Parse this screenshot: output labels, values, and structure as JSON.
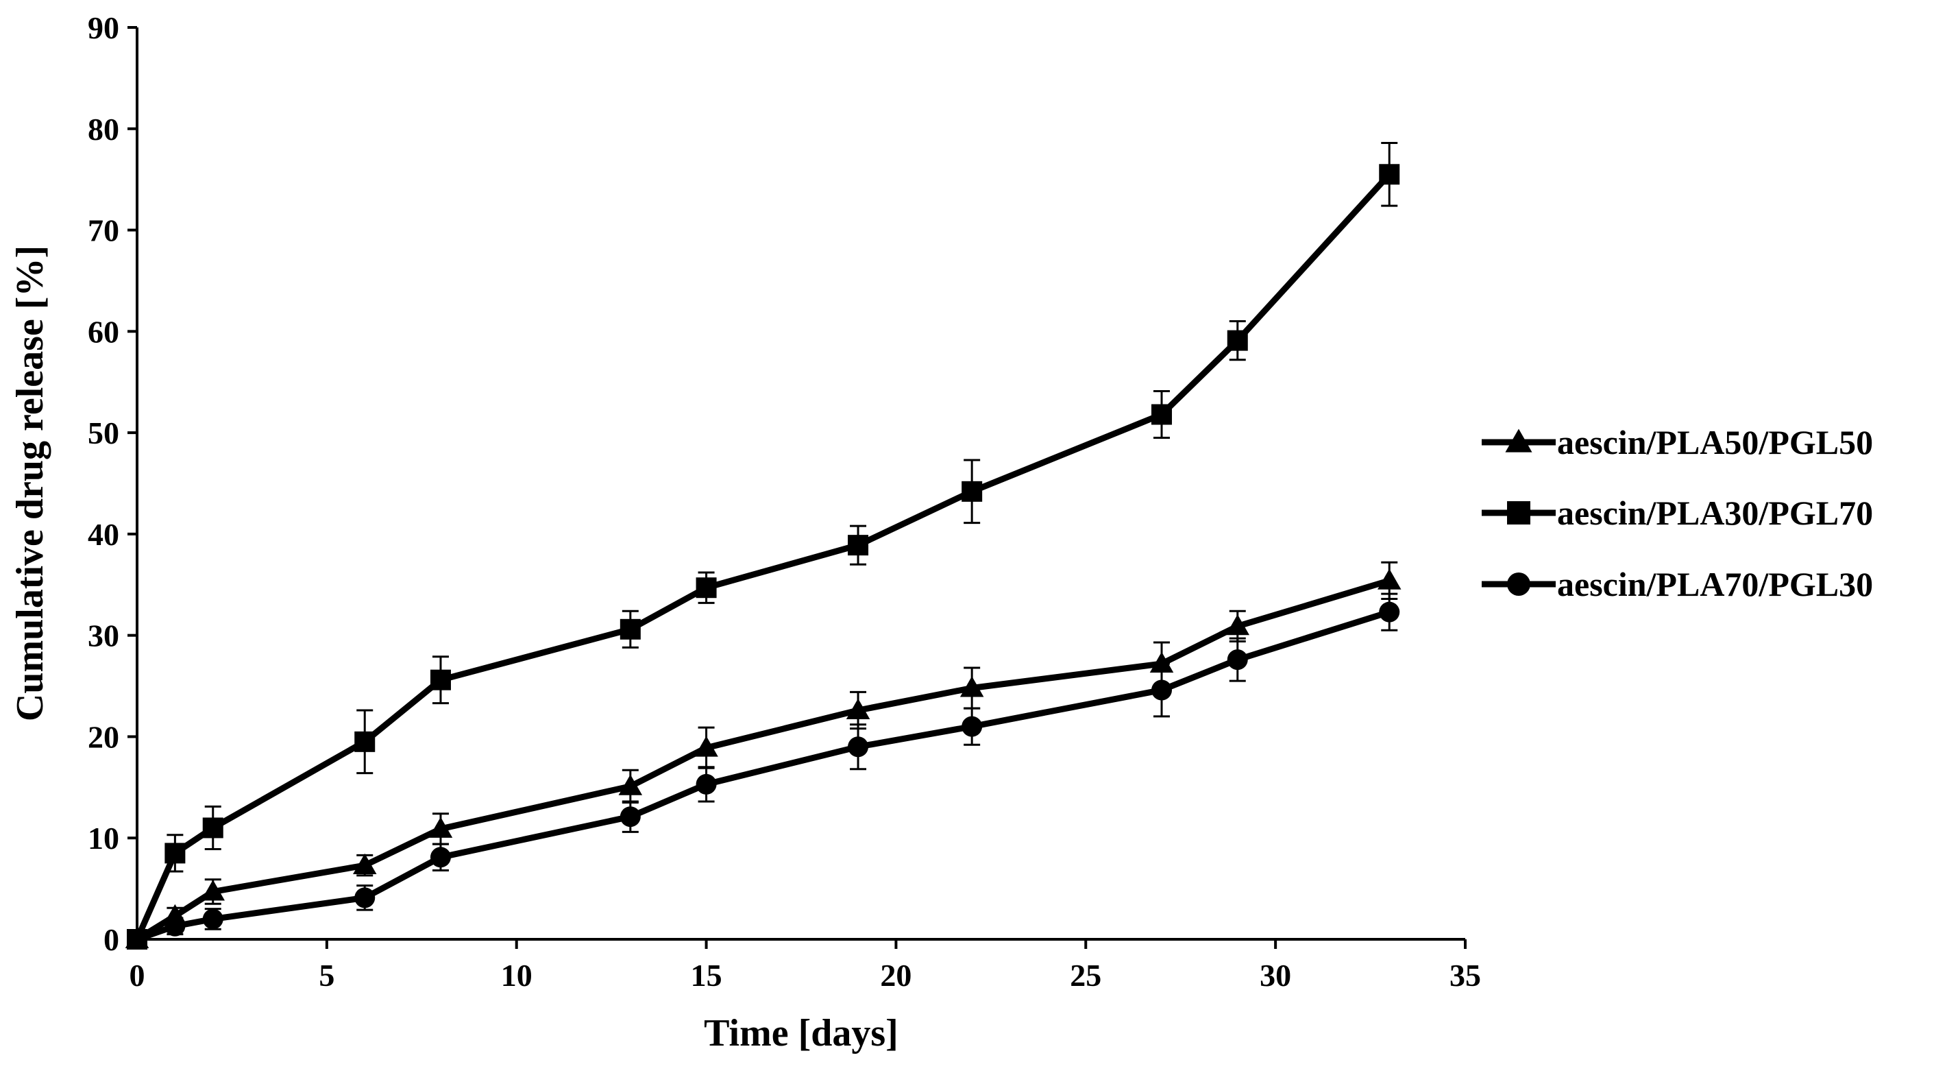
{
  "chart_data": {
    "type": "line",
    "title": "",
    "xlabel": "Time [days]",
    "ylabel": "Cumulative drug release [%]",
    "xlim": [
      0,
      35
    ],
    "ylim": [
      0,
      90
    ],
    "xticks": [
      0,
      5,
      10,
      15,
      20,
      25,
      30,
      35
    ],
    "yticks": [
      0,
      10,
      20,
      30,
      40,
      50,
      60,
      70,
      80,
      90
    ],
    "grid": false,
    "legend_position": "right",
    "x": [
      0,
      1,
      2,
      6,
      8,
      13,
      15,
      19,
      22,
      27,
      29,
      33
    ],
    "series": [
      {
        "name": "aescin/PLA50/PGL50",
        "marker": "triangle",
        "values": [
          0,
          2.3,
          4.7,
          7.3,
          10.9,
          15.1,
          18.9,
          22.6,
          24.8,
          27.2,
          30.9,
          35.4
        ],
        "errors": [
          0,
          0.8,
          1.2,
          1.0,
          1.5,
          1.6,
          2.0,
          1.8,
          2.0,
          2.1,
          1.5,
          1.8
        ]
      },
      {
        "name": "aescin/PLA30/PGL70",
        "marker": "square",
        "values": [
          0,
          8.5,
          11.0,
          19.5,
          25.6,
          30.6,
          34.7,
          38.9,
          44.2,
          51.8,
          59.1,
          75.5
        ],
        "errors": [
          0,
          1.8,
          2.1,
          3.1,
          2.3,
          1.8,
          1.5,
          1.9,
          3.1,
          2.3,
          1.9,
          3.1
        ]
      },
      {
        "name": "aescin/PLA70/PGL30",
        "marker": "circle",
        "values": [
          0,
          1.3,
          2.0,
          4.1,
          8.1,
          12.1,
          15.3,
          19.0,
          21.0,
          24.6,
          27.6,
          32.3
        ],
        "errors": [
          0,
          0.8,
          1.0,
          1.2,
          1.3,
          1.5,
          1.7,
          2.2,
          1.8,
          2.6,
          2.1,
          1.8
        ]
      }
    ]
  }
}
